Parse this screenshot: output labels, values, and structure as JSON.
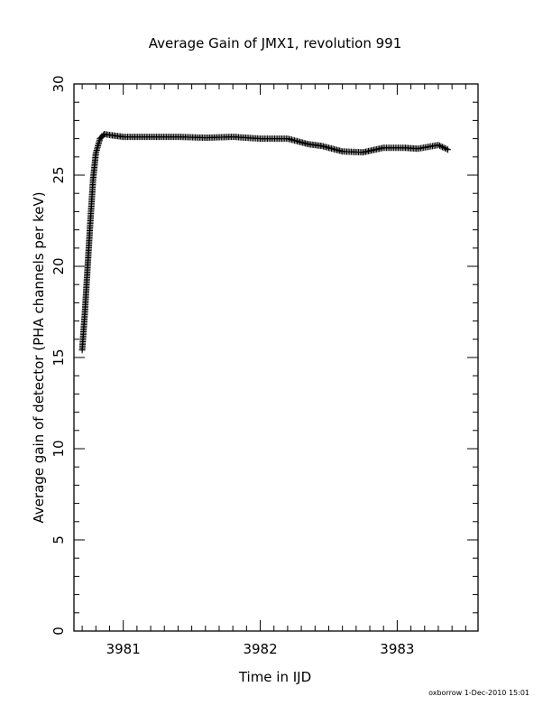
{
  "chart_data": {
    "type": "scatter",
    "title": "Average Gain of JMX1, revolution 991",
    "xlabel": "Time in IJD",
    "ylabel": "Average gain of detector (PHA channels per keV)",
    "xlim": [
      3980.64,
      3983.59
    ],
    "ylim": [
      0,
      30
    ],
    "xticks": [
      3981,
      3982,
      3983
    ],
    "yticks": [
      0,
      5,
      10,
      15,
      20,
      25,
      30
    ],
    "x_minor_step": 0.1,
    "y_minor_step": 1,
    "marker": "plus",
    "color": "#000000",
    "series": [
      {
        "anchors": [
          [
            3980.7,
            15.4
          ],
          [
            3980.72,
            17.5
          ],
          [
            3980.74,
            20.0
          ],
          [
            3980.76,
            22.5
          ],
          [
            3980.78,
            24.8
          ],
          [
            3980.8,
            26.2
          ],
          [
            3980.83,
            27.0
          ],
          [
            3980.86,
            27.25
          ],
          [
            3980.9,
            27.2
          ],
          [
            3981.0,
            27.1
          ],
          [
            3981.2,
            27.1
          ],
          [
            3981.4,
            27.1
          ],
          [
            3981.6,
            27.05
          ],
          [
            3981.8,
            27.1
          ],
          [
            3982.0,
            27.0
          ],
          [
            3982.2,
            27.0
          ],
          [
            3982.35,
            26.7
          ],
          [
            3982.45,
            26.6
          ],
          [
            3982.6,
            26.3
          ],
          [
            3982.75,
            26.25
          ],
          [
            3982.9,
            26.5
          ],
          [
            3983.05,
            26.5
          ],
          [
            3983.15,
            26.45
          ],
          [
            3983.3,
            26.65
          ],
          [
            3983.37,
            26.4
          ]
        ]
      }
    ]
  },
  "footer": "oxborrow  1-Dec-2010 15:01"
}
